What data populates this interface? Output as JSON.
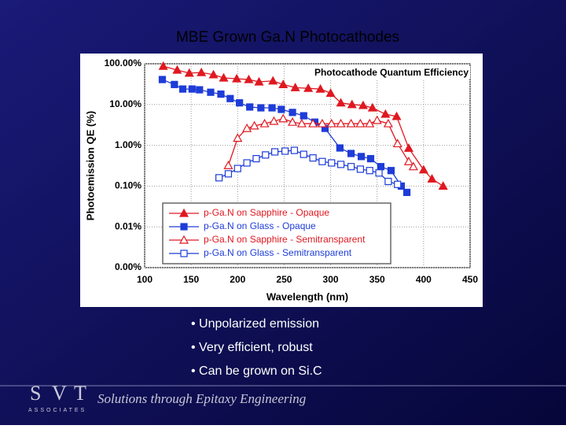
{
  "slide": {
    "title": "MBE Grown Ga.N Photocathodes",
    "bullets": [
      "• Unpolarized emission",
      "• Very efficient, robust",
      "• Can be grown on Si.C"
    ],
    "footer": "Solutions through Epitaxy Engineering",
    "logo": {
      "letters": [
        "S",
        "V",
        "T"
      ],
      "subtitle": "ASSOCIATES"
    }
  },
  "chart_data": {
    "type": "line",
    "title": "Photocathode Quantum Efficiency",
    "x_label": "Wavelength (nm)",
    "y_label": "Photoemission QE (%)",
    "xlim": [
      100,
      450
    ],
    "xticks": [
      100,
      150,
      200,
      250,
      300,
      350,
      400,
      450
    ],
    "ylim": [
      0.001,
      100
    ],
    "ylog": true,
    "yticks": [
      {
        "value": 0.001,
        "label": "0.00%"
      },
      {
        "value": 0.01,
        "label": "0.01%"
      },
      {
        "value": 0.1,
        "label": "0.10%"
      },
      {
        "value": 1,
        "label": "1.00%"
      },
      {
        "value": 10,
        "label": "10.00%"
      },
      {
        "value": 100,
        "label": "100.00%"
      }
    ],
    "grid": true,
    "legend": "lower left",
    "series": [
      {
        "name": "p-Ga.N on Sapphire - Opaque",
        "color": "#e01820",
        "marker": "triangle",
        "filled": true,
        "x": [
          120,
          135,
          148,
          161,
          174,
          185,
          199,
          212,
          223,
          238,
          249,
          262,
          276,
          289,
          300,
          311,
          323,
          335,
          345,
          359,
          371,
          384,
          400,
          409,
          421
        ],
        "values": [
          87,
          70,
          59,
          61,
          54,
          45,
          43,
          41,
          36,
          38,
          31,
          26,
          25,
          24,
          19,
          11,
          10,
          9.5,
          8.3,
          5.8,
          5.1,
          0.85,
          0.25,
          0.15,
          0.1
        ]
      },
      {
        "name": "p-Ga.N on Glass - Opaque",
        "color": "#1e3cd8",
        "marker": "square",
        "filled": true,
        "x": [
          119,
          132,
          141,
          151,
          159,
          171,
          182,
          192,
          202,
          213,
          225,
          237,
          247,
          259,
          271,
          283,
          294,
          310,
          322,
          333,
          343,
          354,
          365,
          376,
          382
        ],
        "values": [
          41,
          31,
          24,
          24,
          23,
          20,
          18,
          14,
          11,
          8.7,
          8.3,
          8.3,
          7.6,
          6.4,
          5.3,
          3.7,
          2.6,
          0.86,
          0.63,
          0.53,
          0.47,
          0.3,
          0.24,
          0.1,
          0.07
        ]
      },
      {
        "name": "p-Ga.N on Sapphire - Semitransparent",
        "color": "#e01820",
        "marker": "triangle",
        "filled": false,
        "x": [
          190,
          200,
          210,
          218,
          229,
          239,
          249,
          259,
          269,
          281,
          291,
          301,
          311,
          322,
          332,
          342,
          350,
          362,
          372,
          384,
          389
        ],
        "values": [
          0.32,
          1.5,
          2.6,
          3.0,
          3.4,
          3.9,
          4.5,
          3.7,
          3.4,
          3.4,
          3.4,
          3.4,
          3.4,
          3.4,
          3.4,
          3.4,
          4.1,
          3.4,
          1.1,
          0.4,
          0.3
        ]
      },
      {
        "name": "p-Ga.N on Glass - Semitransparent",
        "color": "#1e3cd8",
        "marker": "square",
        "filled": false,
        "x": [
          180,
          190,
          200,
          210,
          220,
          230,
          240,
          251,
          261,
          271,
          281,
          291,
          301,
          311,
          322,
          332,
          342,
          352,
          362,
          372
        ],
        "values": [
          0.16,
          0.2,
          0.27,
          0.37,
          0.47,
          0.58,
          0.69,
          0.72,
          0.75,
          0.6,
          0.49,
          0.4,
          0.37,
          0.34,
          0.3,
          0.26,
          0.24,
          0.21,
          0.13,
          0.11
        ]
      }
    ]
  }
}
